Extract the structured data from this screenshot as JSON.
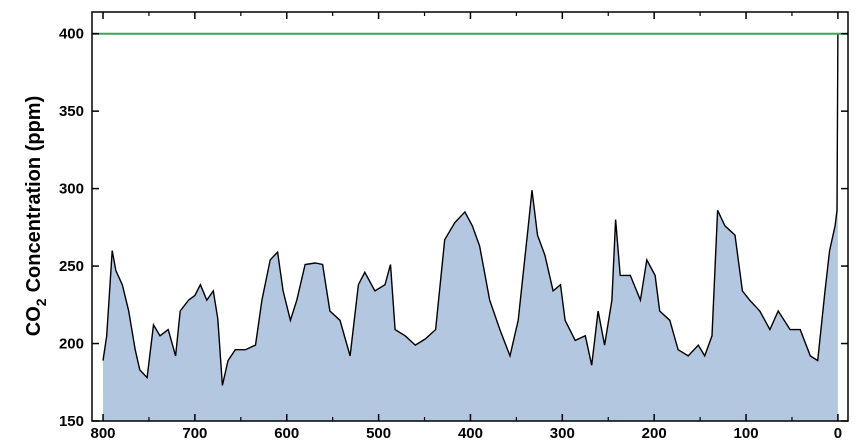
{
  "chart_data": {
    "type": "area",
    "ylabel": [
      "CO",
      "2",
      "Concentration (ppm)"
    ],
    "x": [
      800,
      796,
      790,
      786,
      779,
      772,
      765,
      760,
      752,
      745,
      738,
      729,
      721,
      716,
      707,
      700,
      694,
      687,
      680,
      675,
      670,
      664,
      656,
      645,
      634,
      627,
      618,
      610,
      604,
      596,
      589,
      580,
      569,
      561,
      553,
      542,
      531,
      522,
      515,
      504,
      493,
      487,
      482,
      471,
      460,
      449,
      438,
      428,
      417,
      406,
      398,
      390,
      379,
      368,
      357,
      348,
      337,
      333,
      327,
      319,
      310,
      302,
      297,
      286,
      275,
      268,
      261,
      254,
      246,
      242,
      237,
      226,
      215,
      208,
      199,
      194,
      183,
      174,
      163,
      152,
      145,
      137,
      131,
      123,
      112,
      104,
      96,
      85,
      74,
      65,
      52,
      41,
      30,
      22,
      14,
      9,
      3,
      1,
      0
    ],
    "values": [
      189,
      205,
      260,
      247,
      238,
      221,
      196,
      183,
      178,
      212,
      205,
      209,
      192,
      221,
      228,
      231,
      238,
      228,
      234,
      216,
      173,
      189,
      196,
      196,
      199,
      228,
      254,
      259,
      234,
      215,
      228,
      251,
      252,
      251,
      221,
      215,
      192,
      238,
      246,
      234,
      238,
      251,
      209,
      205,
      199,
      203,
      209,
      267,
      278,
      285,
      276,
      263,
      228,
      209,
      192,
      215,
      276,
      299,
      270,
      257,
      234,
      238,
      215,
      202,
      205,
      186,
      221,
      199,
      228,
      280,
      244,
      244,
      228,
      254,
      244,
      221,
      215,
      196,
      192,
      199,
      192,
      205,
      286,
      276,
      270,
      234,
      228,
      221,
      209,
      221,
      209,
      209,
      192,
      189,
      234,
      260,
      276,
      286,
      400
    ],
    "fill": "#b3c7e0",
    "line_color": "#000000",
    "reference_line": {
      "value": 400,
      "color": "#3aa655"
    },
    "xlim": [
      812,
      -11
    ],
    "ylim": [
      150,
      414
    ],
    "xticks": [
      800,
      700,
      600,
      500,
      400,
      300,
      200,
      100,
      0
    ],
    "xticks_minor": [
      750,
      650,
      550,
      450,
      350,
      250,
      150,
      50
    ],
    "yticks": [
      150,
      200,
      250,
      300,
      350,
      400
    ]
  }
}
